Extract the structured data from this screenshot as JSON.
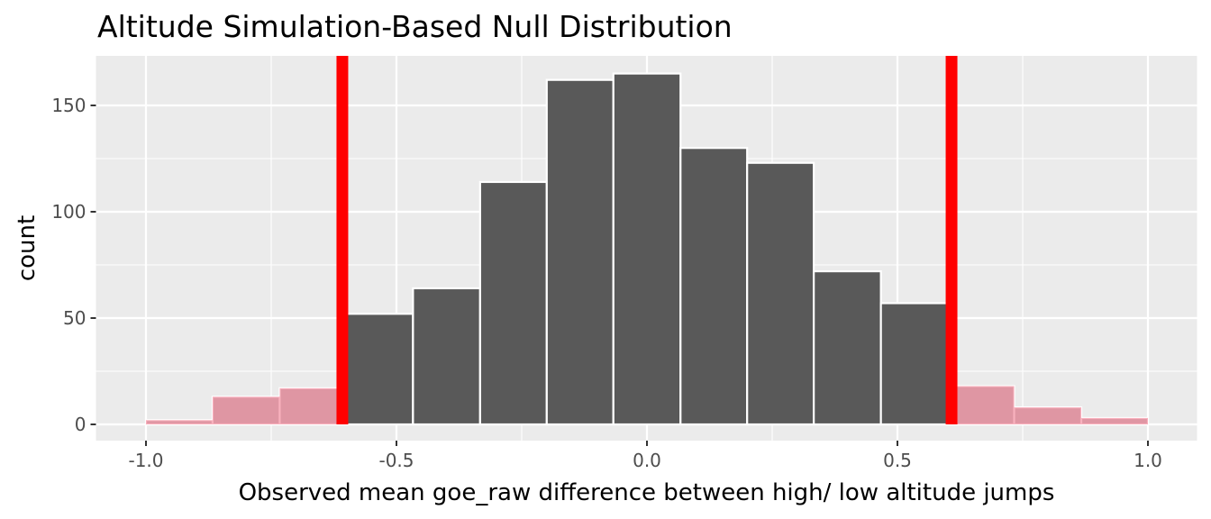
{
  "chart_data": {
    "type": "bar",
    "title": "Altitude Simulation-Based Null Distribution",
    "xlabel": "Observed mean goe_raw difference between high/ low altitude jumps",
    "ylabel": "count",
    "xlim": [
      -1.0,
      1.0
    ],
    "ylim": [
      0,
      165
    ],
    "x_ticks": [
      -1.0,
      -0.5,
      0.0,
      0.5,
      1.0
    ],
    "x_tick_labels": [
      "-1.0",
      "-0.5",
      "0.0",
      "0.5",
      "1.0"
    ],
    "y_ticks": [
      0,
      50,
      100,
      150
    ],
    "y_tick_labels": [
      "0",
      "50",
      "100",
      "150"
    ],
    "bins": [
      {
        "x_start": -1.0,
        "x_end": -0.867,
        "count": 2,
        "shaded": true
      },
      {
        "x_start": -0.867,
        "x_end": -0.733,
        "count": 13,
        "shaded": true
      },
      {
        "x_start": -0.733,
        "x_end": -0.6,
        "count": 17,
        "shaded": true
      },
      {
        "x_start": -0.6,
        "x_end": -0.467,
        "count": 52,
        "shaded": false
      },
      {
        "x_start": -0.467,
        "x_end": -0.333,
        "count": 64,
        "shaded": false
      },
      {
        "x_start": -0.333,
        "x_end": -0.2,
        "count": 114,
        "shaded": false
      },
      {
        "x_start": -0.2,
        "x_end": -0.067,
        "count": 162,
        "shaded": false
      },
      {
        "x_start": -0.067,
        "x_end": 0.067,
        "count": 165,
        "shaded": false
      },
      {
        "x_start": 0.067,
        "x_end": 0.2,
        "count": 130,
        "shaded": false
      },
      {
        "x_start": 0.2,
        "x_end": 0.333,
        "count": 123,
        "shaded": false
      },
      {
        "x_start": 0.333,
        "x_end": 0.467,
        "count": 72,
        "shaded": false
      },
      {
        "x_start": 0.467,
        "x_end": 0.6,
        "count": 57,
        "shaded": false
      },
      {
        "x_start": 0.6,
        "x_end": 0.733,
        "count": 18,
        "shaded": true
      },
      {
        "x_start": 0.733,
        "x_end": 0.867,
        "count": 8,
        "shaded": true
      },
      {
        "x_start": 0.867,
        "x_end": 1.0,
        "count": 3,
        "shaded": true
      }
    ],
    "observed_lines": [
      -0.608,
      0.608
    ],
    "grid": true,
    "colors": {
      "panel_background": "#ebebeb",
      "grid": "#ffffff",
      "bar_fill": "#595959",
      "bar_outline": "#ffffff",
      "shade_fill": "#f7a1b0",
      "shade_alpha": 0.6,
      "observed_line": "#ff0000"
    }
  }
}
